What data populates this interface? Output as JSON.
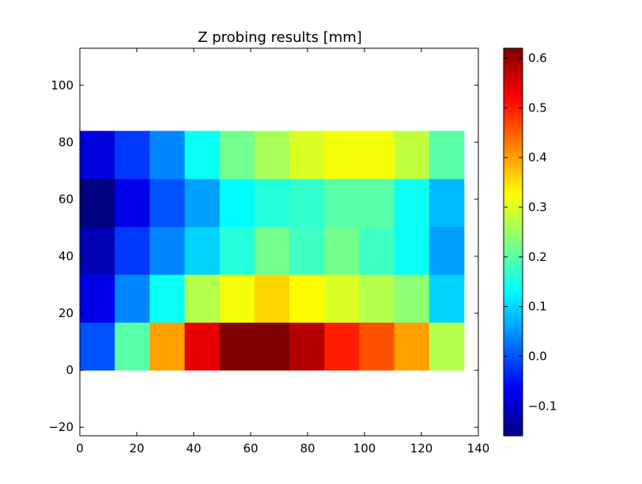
{
  "chart_data": {
    "type": "heatmap",
    "title": "Z probing results [mm]",
    "xlabel": "",
    "ylabel": "",
    "xlim": [
      0,
      140
    ],
    "ylim": [
      -23,
      113
    ],
    "x_ticks": [
      0,
      20,
      40,
      60,
      80,
      100,
      120,
      140
    ],
    "y_ticks": [
      -20,
      0,
      20,
      40,
      60,
      80,
      100
    ],
    "x_edges": [
      0,
      12.27,
      24.55,
      36.82,
      49.09,
      61.36,
      73.64,
      85.91,
      98.18,
      110.45,
      122.73,
      135
    ],
    "y_edges": [
      0,
      16.8,
      33.6,
      50.4,
      67.2,
      84
    ],
    "z_values": [
      [
        0.0,
        0.2,
        0.4,
        0.54,
        0.62,
        0.62,
        0.58,
        0.5,
        0.46,
        0.4,
        0.27
      ],
      [
        -0.08,
        0.04,
        0.14,
        0.27,
        0.32,
        0.36,
        0.33,
        0.3,
        0.27,
        0.24,
        0.1
      ],
      [
        -0.12,
        -0.02,
        0.04,
        0.1,
        0.16,
        0.22,
        0.18,
        0.22,
        0.18,
        0.14,
        0.06
      ],
      [
        -0.16,
        -0.08,
        0.0,
        0.06,
        0.13,
        0.16,
        0.17,
        0.2,
        0.2,
        0.14,
        0.08
      ],
      [
        -0.09,
        -0.02,
        0.04,
        0.14,
        0.22,
        0.26,
        0.3,
        0.32,
        0.32,
        0.28,
        0.2
      ]
    ],
    "colorbar": {
      "colormap": "jet",
      "vmin": -0.16,
      "vmax": 0.62,
      "ticks": [
        -0.1,
        0.0,
        0.1,
        0.2,
        0.3,
        0.4,
        0.5,
        0.6
      ],
      "tick_labels": [
        "−0.1",
        "0.0",
        "0.1",
        "0.2",
        "0.3",
        "0.4",
        "0.5",
        "0.6"
      ]
    },
    "grid": false,
    "legend": "none"
  }
}
